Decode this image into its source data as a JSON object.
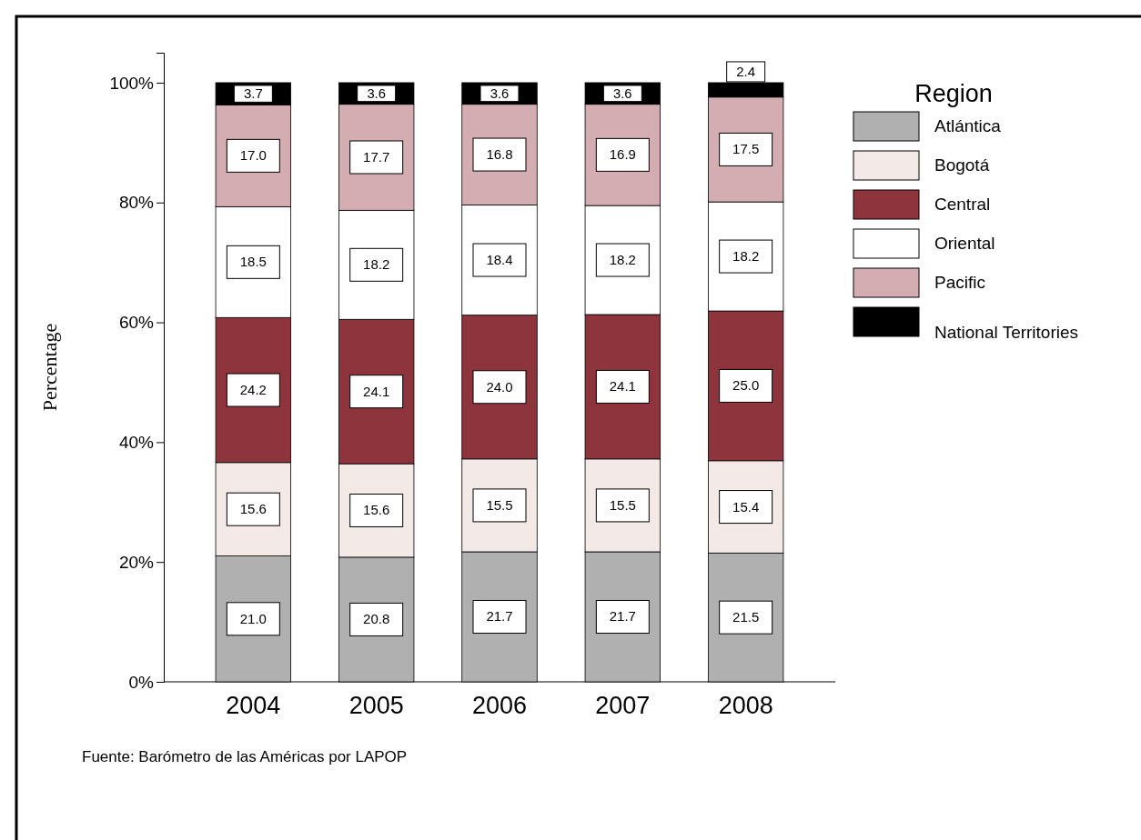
{
  "chart_data": {
    "type": "bar",
    "stacked": true,
    "ylabel": "Percentage",
    "legend_title": "Region",
    "legend": "right",
    "categories": [
      "2004",
      "2005",
      "2006",
      "2007",
      "2008"
    ],
    "ylim": [
      0,
      105
    ],
    "yticks": [
      {
        "value": 0,
        "label": "0%"
      },
      {
        "value": 20,
        "label": "20%"
      },
      {
        "value": 40,
        "label": "40%"
      },
      {
        "value": 60,
        "label": "60%"
      },
      {
        "value": 80,
        "label": "80%"
      },
      {
        "value": 100,
        "label": "100%"
      }
    ],
    "series": [
      {
        "name": "Atlántica",
        "color": "#b0b0b0",
        "values": [
          21.0,
          20.8,
          21.7,
          21.7,
          21.5
        ],
        "value_labels": [
          "21.0",
          "20.8",
          "21.7",
          "21.7",
          "21.5"
        ]
      },
      {
        "name": "Bogotá",
        "color": "#f3e9e7",
        "values": [
          15.6,
          15.6,
          15.5,
          15.5,
          15.4
        ],
        "value_labels": [
          "15.6",
          "15.6",
          "15.5",
          "15.5",
          "15.4"
        ]
      },
      {
        "name": "Central",
        "color": "#8e343c",
        "values": [
          24.2,
          24.1,
          24.0,
          24.1,
          25.0
        ],
        "value_labels": [
          "24.2",
          "24.1",
          "24.0",
          "24.1",
          "25.0"
        ]
      },
      {
        "name": "Oriental",
        "color": "#ffffff",
        "values": [
          18.5,
          18.2,
          18.4,
          18.2,
          18.2
        ],
        "value_labels": [
          "18.5",
          "18.2",
          "18.4",
          "18.2",
          "18.2"
        ]
      },
      {
        "name": "Pacific",
        "color": "#d3adb1",
        "values": [
          17.0,
          17.7,
          16.8,
          16.9,
          17.5
        ],
        "value_labels": [
          "17.0",
          "17.7",
          "16.8",
          "16.9",
          "17.5"
        ]
      },
      {
        "name": "National Territories",
        "color": "#000000",
        "values": [
          3.7,
          3.6,
          3.6,
          3.6,
          2.4
        ],
        "value_labels": [
          "3.7",
          "3.6",
          "3.6",
          "3.6",
          "2.4"
        ]
      }
    ],
    "annotations": [
      "Fuente: Barómetro de las Américas por LAPOP"
    ]
  }
}
